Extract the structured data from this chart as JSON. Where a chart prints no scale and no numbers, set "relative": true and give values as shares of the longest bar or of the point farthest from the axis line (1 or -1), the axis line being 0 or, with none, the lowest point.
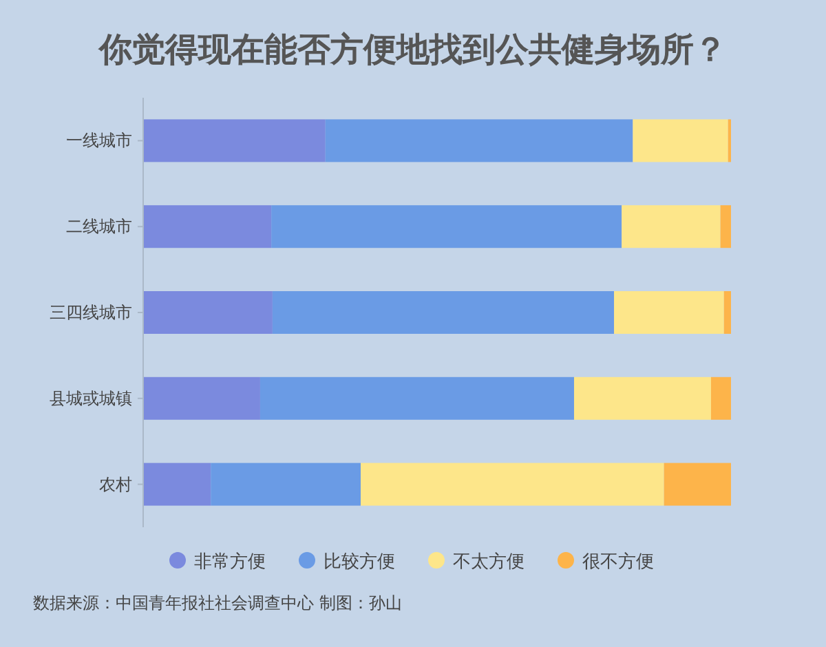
{
  "chart_data": {
    "type": "bar",
    "orientation": "horizontal",
    "stacked": true,
    "relative": true,
    "title": "你觉得现在能否方便地找到公共健身场所？",
    "categories": [
      "一线城市",
      "二线城市",
      "三四线城市",
      "县城或城镇",
      "农村"
    ],
    "series": [
      {
        "name": "非常方便",
        "color": "#7b8ade",
        "values": [
          0.31,
          0.218,
          0.22,
          0.199,
          0.115
        ]
      },
      {
        "name": "比较方便",
        "color": "#6a9be5",
        "values": [
          0.523,
          0.596,
          0.581,
          0.534,
          0.255
        ]
      },
      {
        "name": "不太方便",
        "color": "#fde68a",
        "values": [
          0.162,
          0.168,
          0.187,
          0.233,
          0.516
        ]
      },
      {
        "name": "很不方便",
        "color": "#fdb44a",
        "values": [
          0.005,
          0.018,
          0.012,
          0.034,
          0.114
        ]
      }
    ],
    "legend": "bottom",
    "annotations": [
      "数据来源：中国青年报社社会调查中心 制图：孙山"
    ]
  }
}
